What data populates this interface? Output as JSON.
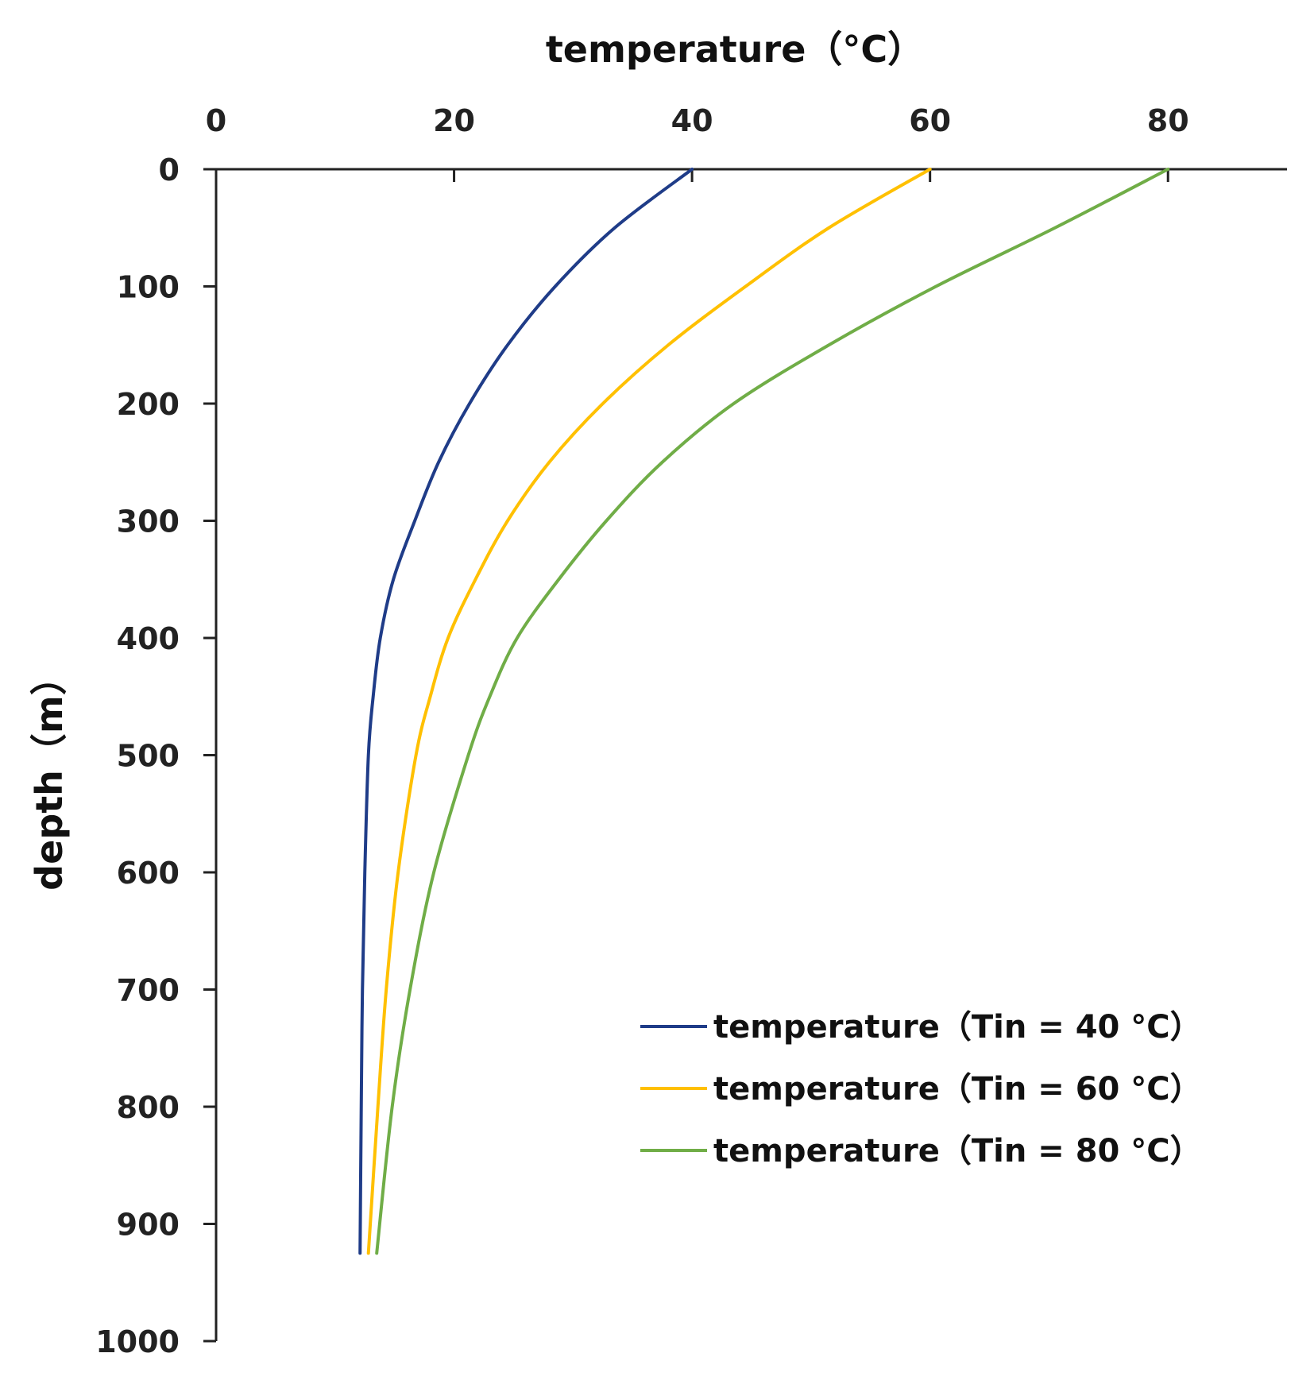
{
  "chart_data": {
    "type": "line",
    "xlabel": "temperature（°C）",
    "ylabel": "depth（m）",
    "x_axis_position": "top",
    "y_axis_inverted": true,
    "xlim": [
      0,
      90
    ],
    "ylim": [
      0,
      1000
    ],
    "x_ticks": [
      0,
      20,
      40,
      60,
      80
    ],
    "x_tick_labels": [
      "0",
      "20",
      "40",
      "60",
      "80"
    ],
    "y_ticks": [
      0,
      100,
      200,
      300,
      400,
      500,
      600,
      700,
      800,
      900,
      1000
    ],
    "y_tick_labels": [
      "0",
      "100",
      "200",
      "300",
      "400",
      "500",
      "600",
      "700",
      "800",
      "900",
      "1000"
    ],
    "legend_position": "bottom-right",
    "series": [
      {
        "name": "temperature（Tin = 40 °C）",
        "color": "#1f3c88",
        "points": [
          {
            "depth": 0,
            "temperature": 40
          },
          {
            "depth": 50,
            "temperature": 33.5
          },
          {
            "depth": 100,
            "temperature": 28.5
          },
          {
            "depth": 150,
            "temperature": 24.5
          },
          {
            "depth": 200,
            "temperature": 21.3
          },
          {
            "depth": 250,
            "temperature": 18.7
          },
          {
            "depth": 300,
            "temperature": 16.7
          },
          {
            "depth": 350,
            "temperature": 14.9
          },
          {
            "depth": 400,
            "temperature": 13.8
          },
          {
            "depth": 450,
            "temperature": 13.2
          },
          {
            "depth": 500,
            "temperature": 12.8
          },
          {
            "depth": 600,
            "temperature": 12.5
          },
          {
            "depth": 700,
            "temperature": 12.3
          },
          {
            "depth": 800,
            "temperature": 12.2
          },
          {
            "depth": 925,
            "temperature": 12.1
          }
        ]
      },
      {
        "name": "temperature（Tin = 60 °C）",
        "color": "#ffc000",
        "points": [
          {
            "depth": 0,
            "temperature": 60
          },
          {
            "depth": 50,
            "temperature": 51.5
          },
          {
            "depth": 100,
            "temperature": 44.5
          },
          {
            "depth": 150,
            "temperature": 38.0
          },
          {
            "depth": 200,
            "temperature": 32.5
          },
          {
            "depth": 250,
            "temperature": 28.0
          },
          {
            "depth": 300,
            "temperature": 24.5
          },
          {
            "depth": 350,
            "temperature": 21.8
          },
          {
            "depth": 400,
            "temperature": 19.5
          },
          {
            "depth": 450,
            "temperature": 18.0
          },
          {
            "depth": 500,
            "temperature": 16.8
          },
          {
            "depth": 600,
            "temperature": 15.3
          },
          {
            "depth": 700,
            "temperature": 14.3
          },
          {
            "depth": 800,
            "temperature": 13.6
          },
          {
            "depth": 925,
            "temperature": 12.8
          }
        ]
      },
      {
        "name": "temperature（Tin = 80 °C）",
        "color": "#70ad47",
        "points": [
          {
            "depth": 0,
            "temperature": 80
          },
          {
            "depth": 50,
            "temperature": 70.5
          },
          {
            "depth": 100,
            "temperature": 60.5
          },
          {
            "depth": 150,
            "temperature": 51.5
          },
          {
            "depth": 200,
            "temperature": 43.5
          },
          {
            "depth": 250,
            "temperature": 37.5
          },
          {
            "depth": 300,
            "temperature": 32.8
          },
          {
            "depth": 350,
            "temperature": 28.8
          },
          {
            "depth": 400,
            "temperature": 25.3
          },
          {
            "depth": 450,
            "temperature": 23.0
          },
          {
            "depth": 500,
            "temperature": 21.2
          },
          {
            "depth": 600,
            "temperature": 18.3
          },
          {
            "depth": 700,
            "temperature": 16.3
          },
          {
            "depth": 800,
            "temperature": 14.8
          },
          {
            "depth": 925,
            "temperature": 13.5
          }
        ]
      }
    ]
  }
}
